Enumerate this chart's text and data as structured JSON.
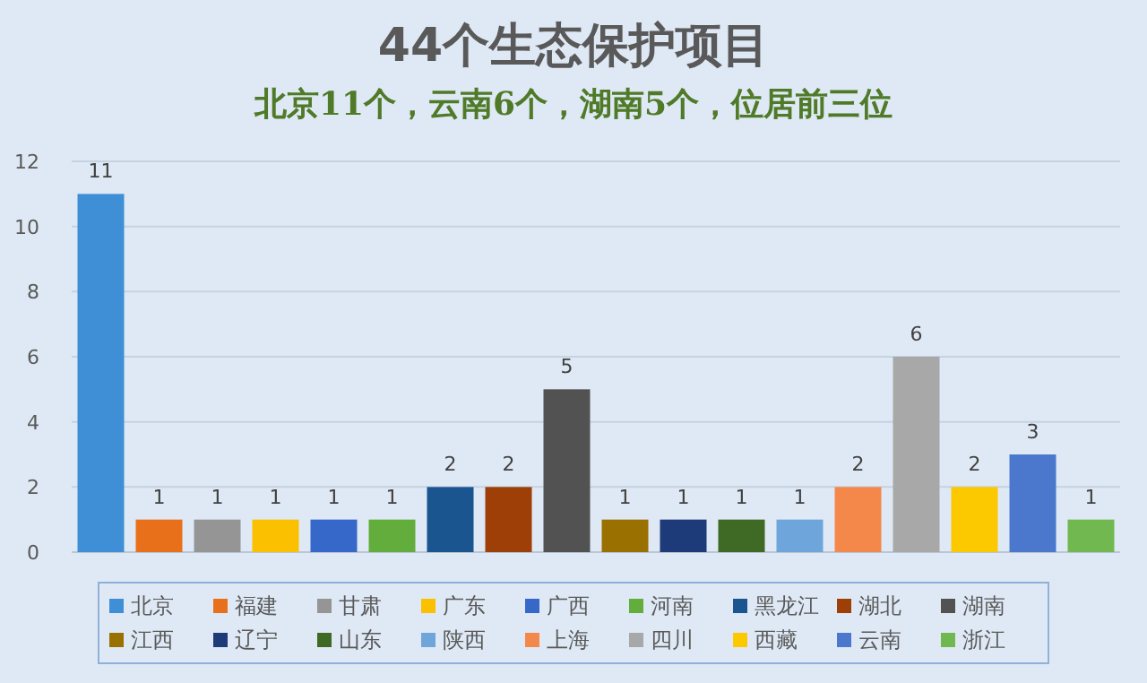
{
  "chart_data": {
    "type": "bar",
    "title": "44个生态保护项目",
    "subtitle": "北京11个，云南6个，湖南5个，位居前三位",
    "categories": [
      null
    ],
    "series": [
      {
        "name": "北京",
        "color": "#3f8fd6",
        "values": [
          11
        ]
      },
      {
        "name": "福建",
        "color": "#e8701a",
        "values": [
          1
        ]
      },
      {
        "name": "甘肃",
        "color": "#959595",
        "values": [
          1
        ]
      },
      {
        "name": "广东",
        "color": "#fbc000",
        "values": [
          1
        ]
      },
      {
        "name": "广西",
        "color": "#3568c8",
        "values": [
          1
        ]
      },
      {
        "name": "河南",
        "color": "#62ad3c",
        "values": [
          1
        ]
      },
      {
        "name": "黑龙江",
        "color": "#1a5590",
        "values": [
          2
        ]
      },
      {
        "name": "湖北",
        "color": "#9e3f08",
        "values": [
          2
        ]
      },
      {
        "name": "湖南",
        "color": "#525252",
        "values": [
          5
        ]
      },
      {
        "name": "江西",
        "color": "#9a7000",
        "values": [
          1
        ]
      },
      {
        "name": "辽宁",
        "color": "#1d3b78",
        "values": [
          1
        ]
      },
      {
        "name": "山东",
        "color": "#3f6a25",
        "values": [
          1
        ]
      },
      {
        "name": "陕西",
        "color": "#6ea6dc",
        "values": [
          1
        ]
      },
      {
        "name": "上海",
        "color": "#f4884a",
        "values": [
          2
        ]
      },
      {
        "name": "四川",
        "color": "#a8a8a8",
        "values": [
          6
        ]
      },
      {
        "name": "西藏",
        "color": "#fcc800",
        "values": [
          2
        ]
      },
      {
        "name": "云南",
        "color": "#4b78cc",
        "values": [
          3
        ]
      },
      {
        "name": "浙江",
        "color": "#72b851",
        "values": [
          1
        ]
      }
    ],
    "ylim": [
      0,
      12
    ],
    "yticks": [
      0,
      2,
      4,
      6,
      8,
      10,
      12
    ],
    "grid": "y",
    "data_labels": true,
    "legend": "bottom",
    "tick_labels": "y"
  }
}
